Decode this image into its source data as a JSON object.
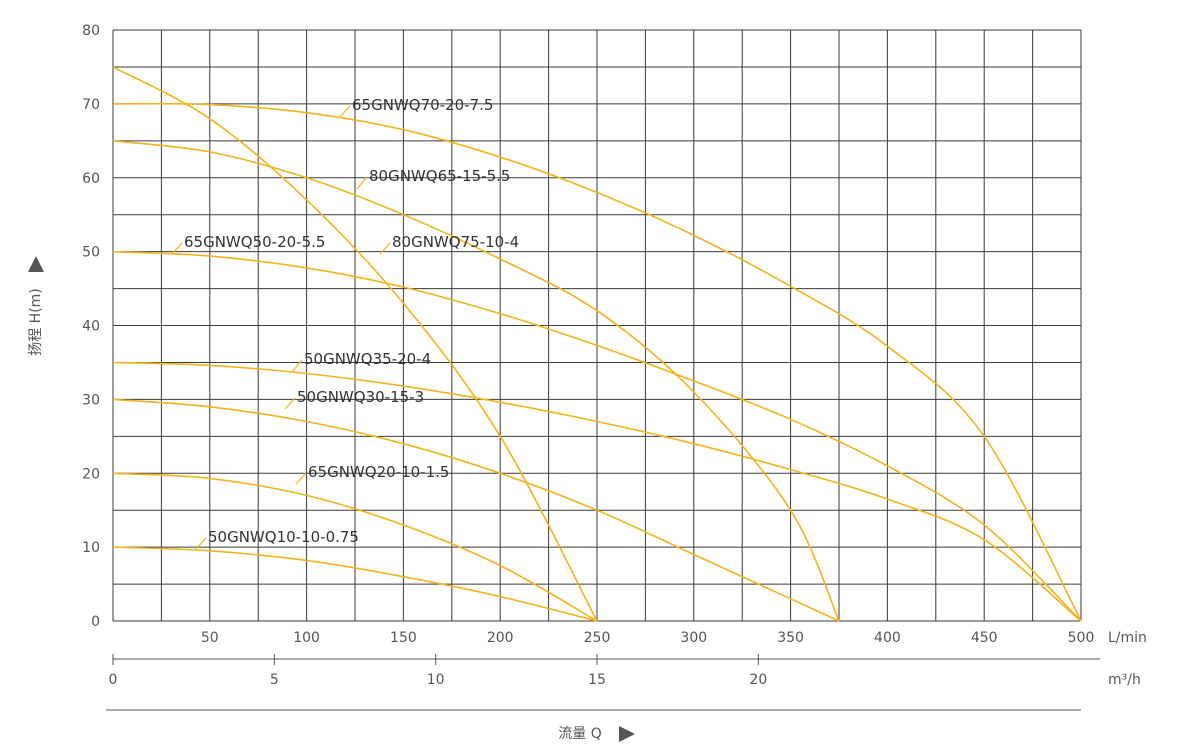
{
  "chart_data": {
    "type": "line",
    "ylabel": "扬程 H(m)",
    "xlabel": "流量 Q",
    "x_unit_primary": "L/min",
    "x_unit_secondary": "m³/h",
    "ylim": [
      0,
      80
    ],
    "xlim": [
      0,
      500
    ],
    "y_ticks": [
      "0",
      "10",
      "20",
      "30",
      "40",
      "50",
      "60",
      "70",
      "80"
    ],
    "x_ticks_primary": [
      "50",
      "100",
      "150",
      "200",
      "250",
      "300",
      "350",
      "400",
      "450",
      "500"
    ],
    "x_ticks_secondary": [
      "0",
      "5",
      "10",
      "15",
      "20"
    ],
    "grid": true,
    "series": [
      {
        "name": "65GNWQ70-20-7.5",
        "x": [
          0,
          50,
          100,
          150,
          200,
          250,
          300,
          350,
          400,
          450,
          500
        ],
        "y": [
          70,
          69.9,
          68.8,
          66.5,
          62.8,
          58,
          52.2,
          45.3,
          37.2,
          25,
          0
        ]
      },
      {
        "name": "80GNWQ65-15-5.5",
        "x": [
          0,
          50,
          100,
          150,
          200,
          250,
          300,
          350,
          375
        ],
        "y": [
          65,
          63.5,
          60,
          55,
          49,
          42,
          31,
          15,
          0
        ]
      },
      {
        "name": "65GNWQ50-20-5.5",
        "x": [
          0,
          50,
          100,
          150,
          200,
          250,
          300,
          350,
          400,
          450,
          500
        ],
        "y": [
          50,
          49.4,
          47.8,
          45.2,
          41.6,
          37.3,
          32.5,
          27.3,
          21,
          13,
          0
        ]
      },
      {
        "name": "80GNWQ75-10-4",
        "x": [
          0,
          50,
          100,
          150,
          200,
          250
        ],
        "y": [
          75,
          68,
          57,
          43,
          25,
          0
        ]
      },
      {
        "name": "50GNWQ35-20-4",
        "x": [
          0,
          50,
          100,
          150,
          200,
          250,
          300,
          350,
          400,
          450,
          500
        ],
        "y": [
          35,
          34.6,
          33.5,
          31.8,
          29.6,
          27,
          24,
          20.5,
          16.5,
          11,
          0
        ]
      },
      {
        "name": "50GNWQ30-15-3",
        "x": [
          0,
          50,
          100,
          150,
          200,
          250,
          300,
          350,
          375
        ],
        "y": [
          30,
          29,
          27,
          24,
          20,
          15,
          9,
          3,
          0
        ]
      },
      {
        "name": "65GNWQ20-10-1.5",
        "x": [
          0,
          50,
          100,
          150,
          200,
          250
        ],
        "y": [
          20,
          19.3,
          17,
          13,
          7.5,
          0
        ]
      },
      {
        "name": "50GNWQ10-10-0.75",
        "x": [
          0,
          50,
          100,
          150,
          200,
          250
        ],
        "y": [
          10,
          9.5,
          8.2,
          6,
          3.3,
          0
        ]
      }
    ]
  }
}
